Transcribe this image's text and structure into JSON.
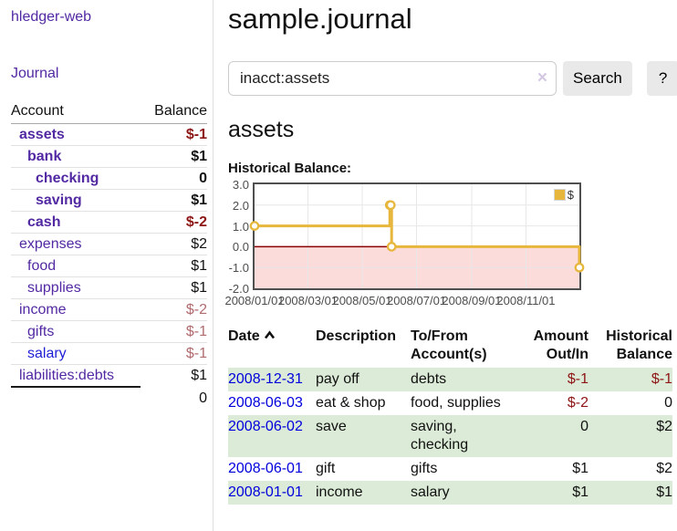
{
  "app": {
    "title": "hledger-web",
    "nav_journal": "Journal"
  },
  "sidebar_accounts": {
    "col_account": "Account",
    "col_balance": "Balance",
    "rows": [
      {
        "name": "assets",
        "balance": "$-1",
        "indent": 1,
        "bold": true,
        "neg": "strong"
      },
      {
        "name": "bank",
        "balance": "$1",
        "indent": 2,
        "bold": true
      },
      {
        "name": "checking",
        "balance": "0",
        "indent": 3,
        "bold": true
      },
      {
        "name": "saving",
        "balance": "$1",
        "indent": 3,
        "bold": true
      },
      {
        "name": "cash",
        "balance": "$-2",
        "indent": 2,
        "bold": true,
        "neg": "strong"
      },
      {
        "name": "expenses",
        "balance": "$2",
        "indent": 1
      },
      {
        "name": "food",
        "balance": "$1",
        "indent": 2
      },
      {
        "name": "supplies",
        "balance": "$1",
        "indent": 2
      },
      {
        "name": "income",
        "balance": "$-2",
        "indent": 1,
        "neg": "muted"
      },
      {
        "name": "gifts",
        "balance": "$-1",
        "indent": 2,
        "neg": "muted"
      },
      {
        "name": "salary",
        "balance": "$-1",
        "indent": 2,
        "neg": "muted",
        "unvisited": true
      },
      {
        "name": "liabilities:debts",
        "balance": "$1",
        "indent": 1
      }
    ],
    "total": "0"
  },
  "main": {
    "title": "sample.journal",
    "search": {
      "value": "inacct:assets",
      "clear": "×",
      "search_button": "Search",
      "help_button": "?"
    },
    "account_heading": "assets",
    "section_heading": "Historical Balance:"
  },
  "chart_data": {
    "type": "line",
    "subtype": "step",
    "title": "Historical Balance",
    "legend": [
      "$"
    ],
    "legend_position": "top-right",
    "grid": true,
    "x_range": [
      0,
      365
    ],
    "y_range": [
      -2,
      3
    ],
    "y_ticks": [
      3,
      2,
      1,
      0,
      -1,
      -2
    ],
    "x_ticks": [
      {
        "pos": 0,
        "label": "2008/01/01"
      },
      {
        "pos": 60,
        "label": "2008/03/01"
      },
      {
        "pos": 121,
        "label": "2008/05/01"
      },
      {
        "pos": 182,
        "label": "2008/07/01"
      },
      {
        "pos": 244,
        "label": "2008/09/01"
      },
      {
        "pos": 305,
        "label": "2008/11/01"
      }
    ],
    "series": [
      {
        "name": "$",
        "dates": [
          "2008-01-01",
          "2008-06-01",
          "2008-06-02",
          "2008-06-03",
          "2008-12-31"
        ],
        "points": [
          [
            0,
            1
          ],
          [
            152,
            2
          ],
          [
            153,
            2
          ],
          [
            154,
            0
          ],
          [
            365,
            -1
          ]
        ]
      }
    ],
    "colors": {
      "line": "#e6b73c",
      "marker_fill": "#ffffff",
      "grid": "#e7e7e7",
      "zero_line": "#8b0000",
      "negative_fill": "#fcdbdb",
      "border": "#4f4f4f"
    }
  },
  "register": {
    "headers": {
      "date": "Date",
      "description": "Description",
      "tofrom": "To/From Account(s)",
      "amount": "Amount Out/In",
      "balance": "Historical Balance"
    },
    "rows": [
      {
        "date": "2008-12-31",
        "description": "pay off",
        "tofrom": "debts",
        "amount": "$-1",
        "balance": "$-1",
        "amount_neg": true,
        "balance_neg": true
      },
      {
        "date": "2008-06-03",
        "description": "eat & shop",
        "tofrom": "food, supplies",
        "amount": "$-2",
        "balance": "0",
        "amount_neg": true
      },
      {
        "date": "2008-06-02",
        "description": "save",
        "tofrom": "saving,\nchecking",
        "amount": "0",
        "balance": "$2"
      },
      {
        "date": "2008-06-01",
        "description": "gift",
        "tofrom": "gifts",
        "amount": "$1",
        "balance": "$2"
      },
      {
        "date": "2008-01-01",
        "description": "income",
        "tofrom": "salary",
        "amount": "$1",
        "balance": "$1"
      }
    ]
  },
  "colors": {
    "accent_purple": "#5229a3",
    "link_blue": "#0000dd",
    "negative_strong": "#8e1515",
    "negative_muted": "#b06b6e",
    "row_green": "#dcebd7",
    "chart_gold": "#e6b73c"
  }
}
